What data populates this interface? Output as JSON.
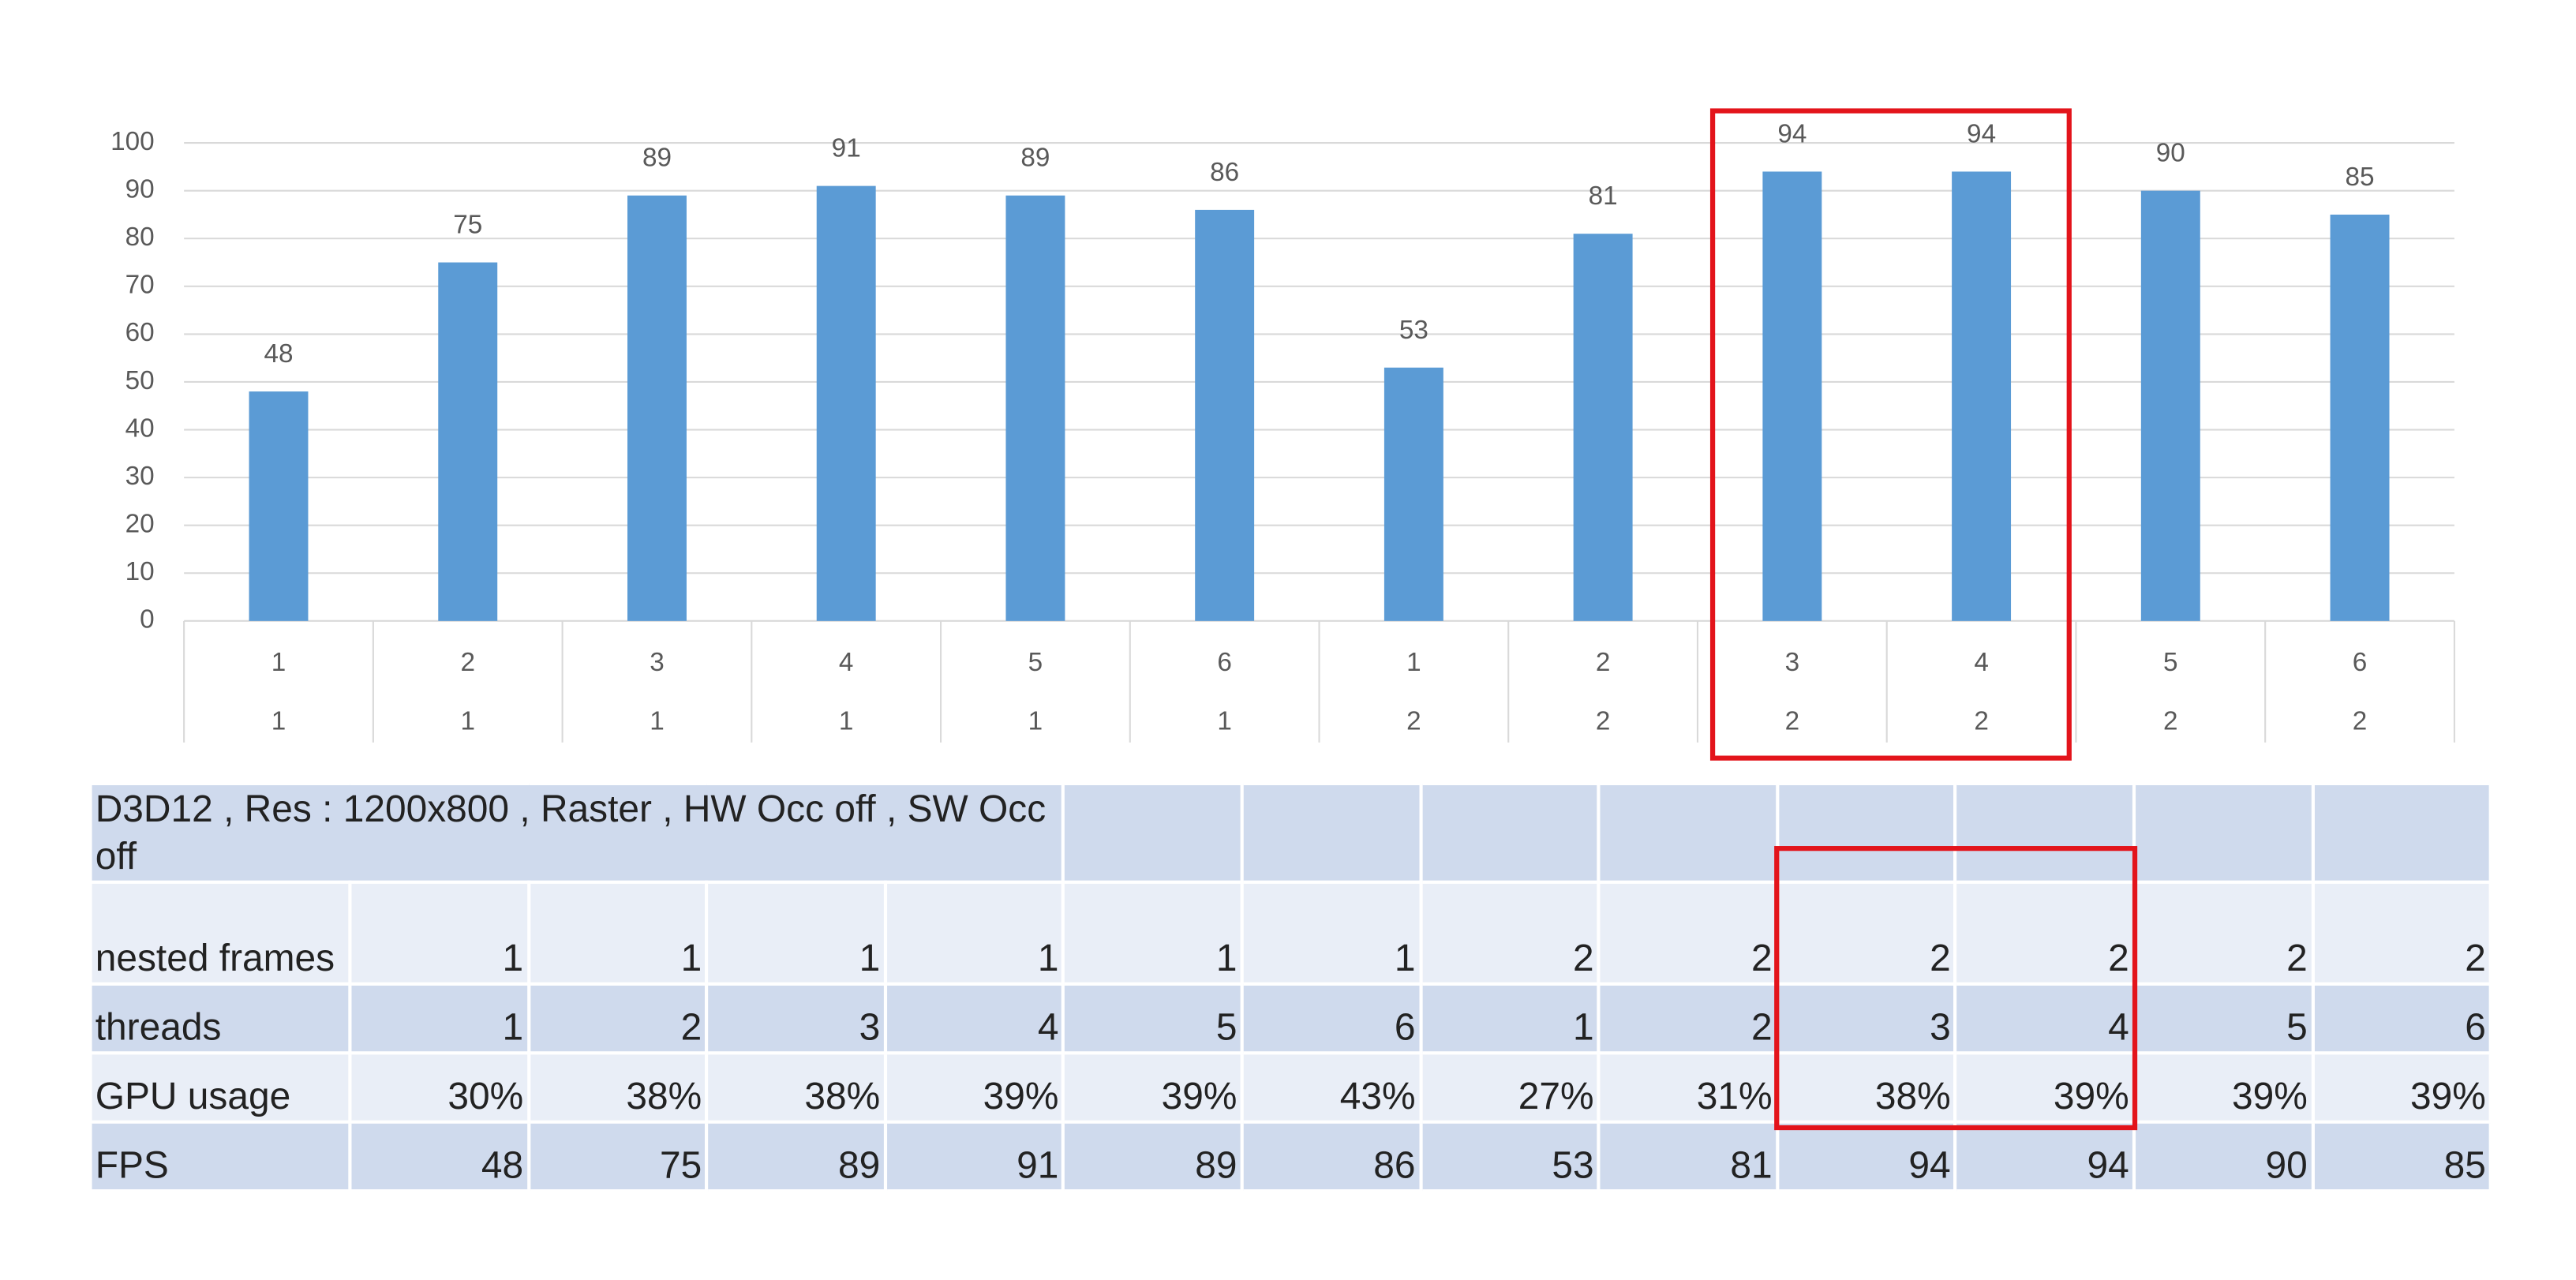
{
  "chart_data": {
    "type": "bar",
    "category_levels": [
      [
        "1",
        "2",
        "3",
        "4",
        "5",
        "6",
        "1",
        "2",
        "3",
        "4",
        "5",
        "6"
      ],
      [
        "1",
        "1",
        "1",
        "1",
        "1",
        "1",
        "2",
        "2",
        "2",
        "2",
        "2",
        "2"
      ]
    ],
    "values": [
      48,
      75,
      89,
      91,
      89,
      86,
      53,
      81,
      94,
      94,
      90,
      85
    ],
    "color": "#5b9bd5",
    "ylim": [
      0,
      100
    ],
    "yticks": [
      0,
      10,
      20,
      30,
      40,
      50,
      60,
      70,
      80,
      90,
      100
    ],
    "grid": true
  },
  "table": {
    "title": "D3D12 , Res : 1200x800 , Raster , HW Occ off , SW Occ off",
    "rows": [
      [
        "nested frames",
        "1",
        "1",
        "1",
        "1",
        "1",
        "1",
        "2",
        "2",
        "2",
        "2",
        "2",
        "2"
      ],
      [
        "threads",
        "1",
        "2",
        "3",
        "4",
        "5",
        "6",
        "1",
        "2",
        "3",
        "4",
        "5",
        "6"
      ],
      [
        "GPU usage",
        "30%",
        "38%",
        "38%",
        "39%",
        "39%",
        "43%",
        "27%",
        "31%",
        "38%",
        "39%",
        "39%",
        "39%"
      ],
      [
        "FPS",
        "48",
        "75",
        "89",
        "91",
        "89",
        "86",
        "53",
        "81",
        "94",
        "94",
        "90",
        "85"
      ]
    ]
  }
}
